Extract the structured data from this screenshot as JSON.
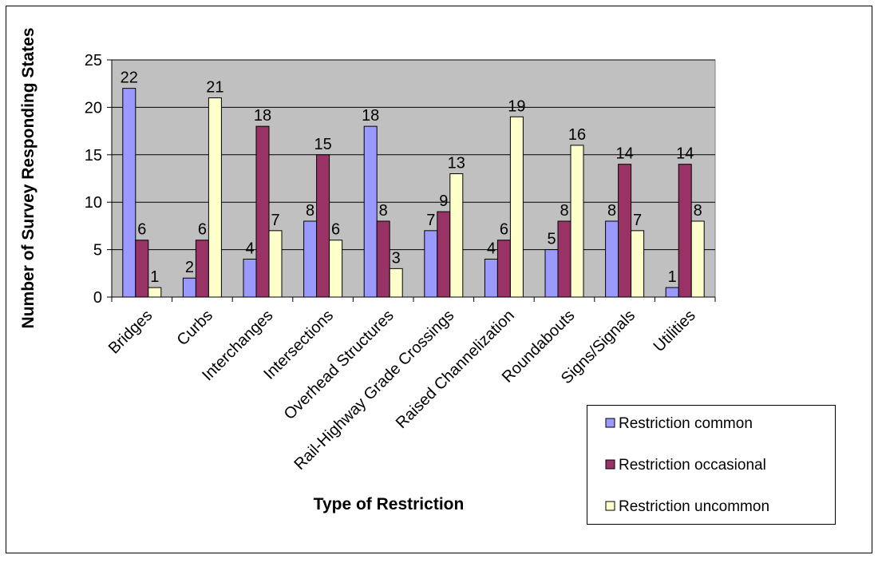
{
  "chart_data": {
    "type": "bar",
    "title": "",
    "xlabel": "Type of Restriction",
    "ylabel": "Number of Survey Responding States",
    "categories": [
      "Bridges",
      "Curbs",
      "Interchanges",
      "Intersections",
      "Overhead Structures",
      "Rail-Highway Grade Crossings",
      "Raised Channelization",
      "Roundabouts",
      "Signs/Signals",
      "Utilities"
    ],
    "series": [
      {
        "name": "Restriction common",
        "values": [
          22,
          2,
          4,
          8,
          18,
          7,
          4,
          5,
          8,
          1
        ],
        "color": "#9999ff"
      },
      {
        "name": "Restriction occasional",
        "values": [
          6,
          6,
          18,
          15,
          8,
          9,
          6,
          8,
          14,
          14
        ],
        "color": "#993366"
      },
      {
        "name": "Restriction uncommon",
        "values": [
          1,
          21,
          7,
          6,
          3,
          13,
          19,
          16,
          7,
          8
        ],
        "color": "#ffffcc"
      }
    ],
    "ylim": [
      0,
      25
    ],
    "yticks": [
      "0",
      "5",
      "10",
      "15",
      "20",
      "25"
    ],
    "grid": true,
    "legend": "bottom-right",
    "plot_background": "#c0c0c0"
  }
}
